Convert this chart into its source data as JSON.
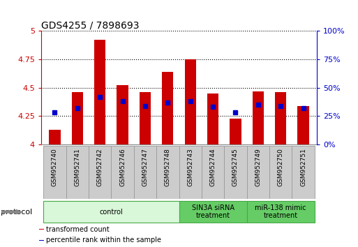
{
  "title": "GDS4255 / 7898693",
  "samples": [
    "GSM952740",
    "GSM952741",
    "GSM952742",
    "GSM952746",
    "GSM952747",
    "GSM952748",
    "GSM952743",
    "GSM952744",
    "GSM952745",
    "GSM952749",
    "GSM952750",
    "GSM952751"
  ],
  "red_values": [
    4.13,
    4.46,
    4.92,
    4.52,
    4.46,
    4.64,
    4.75,
    4.45,
    4.23,
    4.47,
    4.46,
    4.34
  ],
  "blue_values_pct": [
    28,
    32,
    42,
    38,
    34,
    37,
    38,
    33,
    28,
    35,
    34,
    32
  ],
  "ylim_left": [
    4.0,
    5.0
  ],
  "ylim_right": [
    0,
    100
  ],
  "yticks_left": [
    4.0,
    4.25,
    4.5,
    4.75,
    5.0
  ],
  "yticks_right": [
    0,
    25,
    50,
    75,
    100
  ],
  "ytick_labels_left": [
    "4",
    "4.25",
    "4.5",
    "4.75",
    "5"
  ],
  "ytick_labels_right": [
    "0%",
    "25%",
    "50%",
    "75%",
    "100%"
  ],
  "left_axis_color": "#cc0000",
  "right_axis_color": "#0000cc",
  "bar_color": "#cc0000",
  "dot_color": "#0000cc",
  "bar_bottom": 4.0,
  "groups": [
    {
      "label": "control",
      "start": 0,
      "end": 5,
      "color": "#d9f7d9",
      "edge_color": "#44aa44"
    },
    {
      "label": "SIN3A siRNA\ntreatment",
      "start": 6,
      "end": 8,
      "color": "#66cc66",
      "edge_color": "#44aa44"
    },
    {
      "label": "miR-138 mimic\ntreatment",
      "start": 9,
      "end": 11,
      "color": "#66cc66",
      "edge_color": "#44aa44"
    }
  ],
  "legend_items": [
    {
      "label": "transformed count",
      "color": "#cc0000"
    },
    {
      "label": "percentile rank within the sample",
      "color": "#0000cc"
    }
  ],
  "xlabel_protocol": "protocol",
  "bar_width": 0.5,
  "figsize": [
    5.13,
    3.54
  ],
  "dpi": 100,
  "xticklabel_area_color": "#cccccc",
  "xticklabel_area_edge": "#999999",
  "title_fontsize": 10,
  "tick_fontsize": 8,
  "label_fontsize": 6.5,
  "group_fontsize": 7,
  "legend_fontsize": 7
}
